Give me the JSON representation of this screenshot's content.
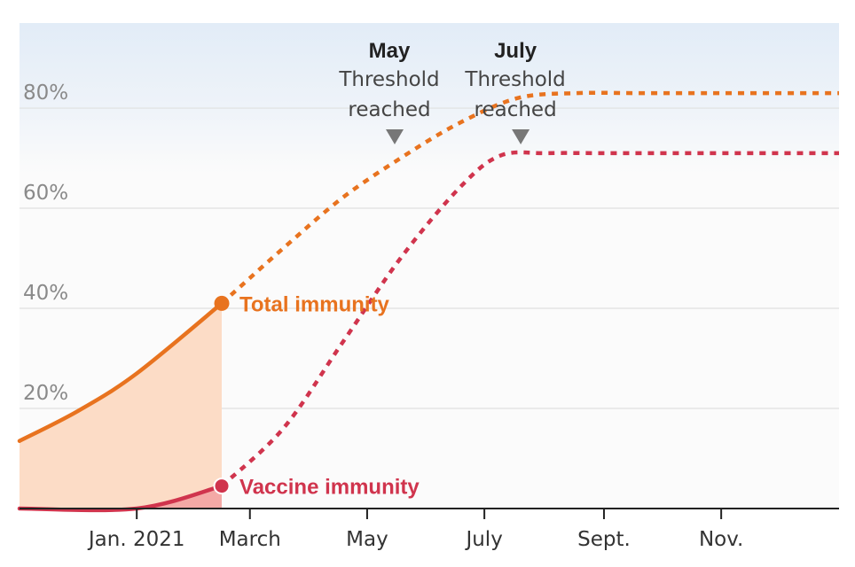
{
  "chart_data": {
    "type": "line",
    "x_axis": {
      "ticks": [
        {
          "value": 2,
          "label": "Jan. 2021"
        },
        {
          "value": 3.93,
          "label": "March"
        },
        {
          "value": 5.93,
          "label": "May"
        },
        {
          "value": 7.93,
          "label": "July"
        },
        {
          "value": 9.97,
          "label": "Sept."
        },
        {
          "value": 11.97,
          "label": "Nov."
        }
      ],
      "range": [
        0,
        13.98
      ]
    },
    "y_axis": {
      "ticks": [
        {
          "value": 20,
          "label": "20%"
        },
        {
          "value": 40,
          "label": "40%"
        },
        {
          "value": 60,
          "label": "60%"
        },
        {
          "value": 80,
          "label": "80%"
        }
      ],
      "range": [
        0,
        97
      ]
    },
    "grid": true,
    "series": [
      {
        "name": "Total immunity",
        "color": "#e8731f",
        "fill_color": "#fcdcc6",
        "actual": [
          [
            0,
            13.5
          ],
          [
            1,
            19.5
          ],
          [
            2,
            27
          ],
          [
            3.45,
            41
          ]
        ],
        "projected": [
          [
            3.45,
            41
          ],
          [
            4.5,
            52
          ],
          [
            5.5,
            62
          ],
          [
            6.5,
            70
          ],
          [
            7.5,
            77
          ],
          [
            8.5,
            82
          ],
          [
            9.5,
            83
          ],
          [
            10.5,
            83
          ],
          [
            11.5,
            83
          ],
          [
            12.5,
            83
          ],
          [
            13.98,
            83
          ]
        ]
      },
      {
        "name": "Vaccine immunity",
        "color": "#d0344d",
        "fill_color": "#f4a9a6",
        "actual": [
          [
            0,
            0
          ],
          [
            2,
            0
          ],
          [
            3.45,
            4.5
          ]
        ],
        "projected": [
          [
            3.45,
            4.5
          ],
          [
            4.5,
            16
          ],
          [
            5.5,
            33
          ],
          [
            6.5,
            50
          ],
          [
            7.5,
            64
          ],
          [
            8.2,
            70.5
          ],
          [
            9,
            71
          ],
          [
            10,
            71
          ],
          [
            11,
            71
          ],
          [
            12,
            71
          ],
          [
            13.98,
            71
          ]
        ]
      }
    ],
    "labels": {
      "total": "Total immunity",
      "vaccine": "Vaccine immunity"
    },
    "annotations": [
      {
        "month": "May",
        "line1": "Threshold",
        "line2": "reached",
        "x": 6.4
      },
      {
        "month": "July",
        "line1": "Threshold",
        "line2": "reached",
        "x": 8.55
      }
    ],
    "colors": {
      "band_top": "#e3edf7",
      "grid": "#e0e0e0",
      "marker": "#777777",
      "axis": "#222222"
    }
  }
}
